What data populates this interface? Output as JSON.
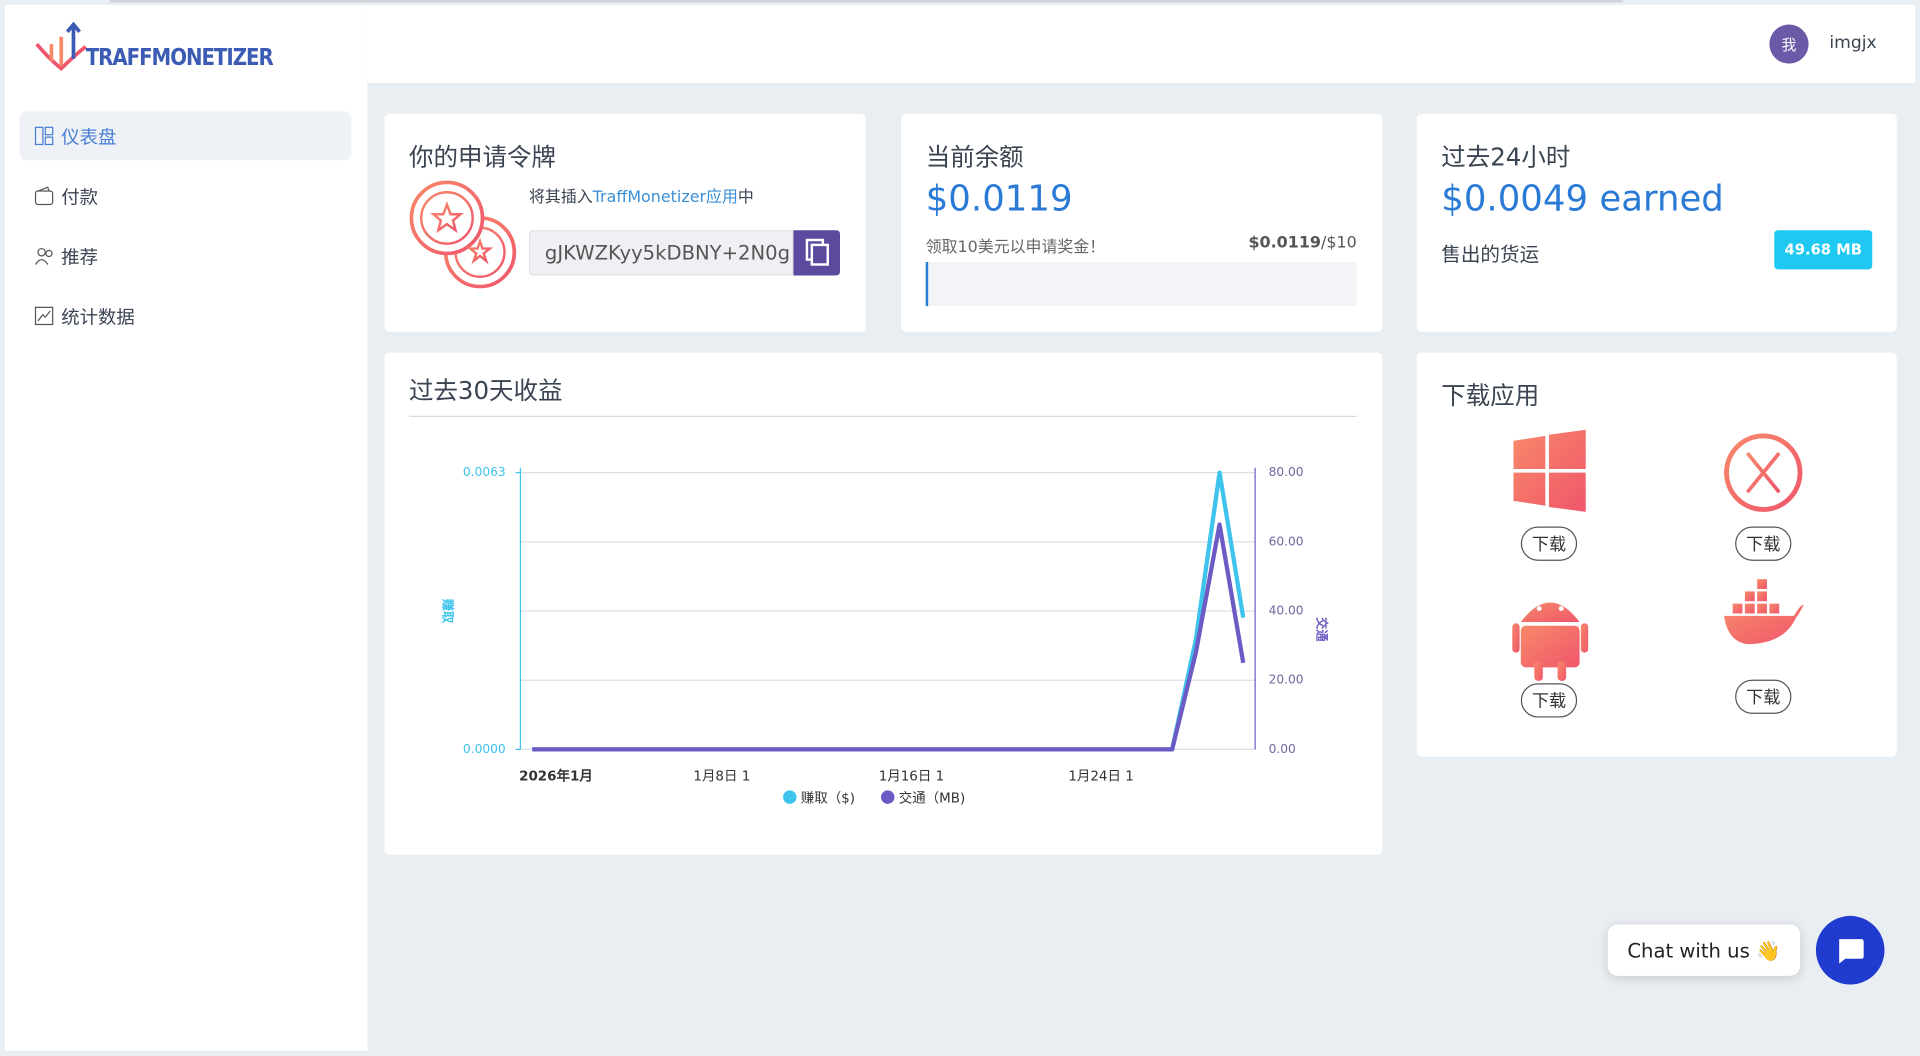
{
  "sidebar": {
    "logo": "TRAFFMONETIZER",
    "nav": [
      "仪表盘",
      "付款",
      "推荐",
      "统计数据"
    ]
  },
  "header": {
    "avatar": "我",
    "username": "imgjx"
  },
  "token_card": {
    "title": "你的申请令牌",
    "instruction_prefix": "将其插入",
    "instruction_link": "TraffMonetizer应用",
    "instruction_suffix": "中",
    "token": "gJKWZKyy5kDBNY+2N0g"
  },
  "balance_card": {
    "title": "当前余额",
    "amount": "$0.0119",
    "bonus_text": "领取10美元以申请奖金！",
    "progress_current": "$0.0119",
    "progress_target": "/$10"
  },
  "day_card": {
    "title": "过去24小时",
    "earned": "$0.0049 earned",
    "sold_label": "售出的货运",
    "sold_value": "49.68 MB"
  },
  "download_card": {
    "title": "下载应用",
    "buttons": [
      "下载",
      "下载",
      "下载",
      "下载"
    ]
  },
  "chat": {
    "label": "Chat with us 👋"
  },
  "chart_data": {
    "type": "line",
    "title": "过去30天收益",
    "y_label": "赚取",
    "y2_label": "交通",
    "categories": [
      null,
      "2026年1月",
      null,
      null,
      null,
      null,
      null,
      null,
      "1月8日 1",
      null,
      null,
      null,
      null,
      null,
      null,
      null,
      "1月16日 1",
      null,
      null,
      null,
      null,
      null,
      null,
      null,
      "1月24日 1",
      null,
      null,
      null,
      null,
      null,
      null
    ],
    "series": [
      {
        "name": "赚取（$)",
        "color": "#3ec3ec",
        "values": [
          0,
          0,
          0,
          0,
          0,
          0,
          0,
          0,
          0,
          0,
          0,
          0,
          0,
          0,
          0,
          0,
          0,
          0,
          0,
          0,
          0,
          0,
          0,
          0,
          0,
          0,
          0,
          0,
          0.0025,
          0.0063,
          0.003
        ]
      },
      {
        "name": "交通（MB)",
        "color": "#6c5bc4",
        "axis": "y2",
        "values": [
          0,
          0,
          0,
          0,
          0,
          0,
          0,
          0,
          0,
          0,
          0,
          0,
          0,
          0,
          0,
          0,
          0,
          0,
          0,
          0,
          0,
          0,
          0,
          0,
          0,
          0,
          0,
          0,
          28,
          65,
          25
        ]
      }
    ],
    "ylim": [
      0,
      0.0063
    ],
    "yticks": [
      {
        "value": 0,
        "label": "0.0000"
      },
      {
        "value": 0.0063,
        "label": "0.0063"
      }
    ],
    "y2lim": [
      0,
      80
    ],
    "y2ticks": [
      {
        "value": 0,
        "label": "0.00"
      },
      {
        "value": 20,
        "label": "20.00"
      },
      {
        "value": 40,
        "label": "40.00"
      },
      {
        "value": 60,
        "label": "60.00"
      },
      {
        "value": 80,
        "label": "80.00"
      }
    ],
    "grid": true
  }
}
